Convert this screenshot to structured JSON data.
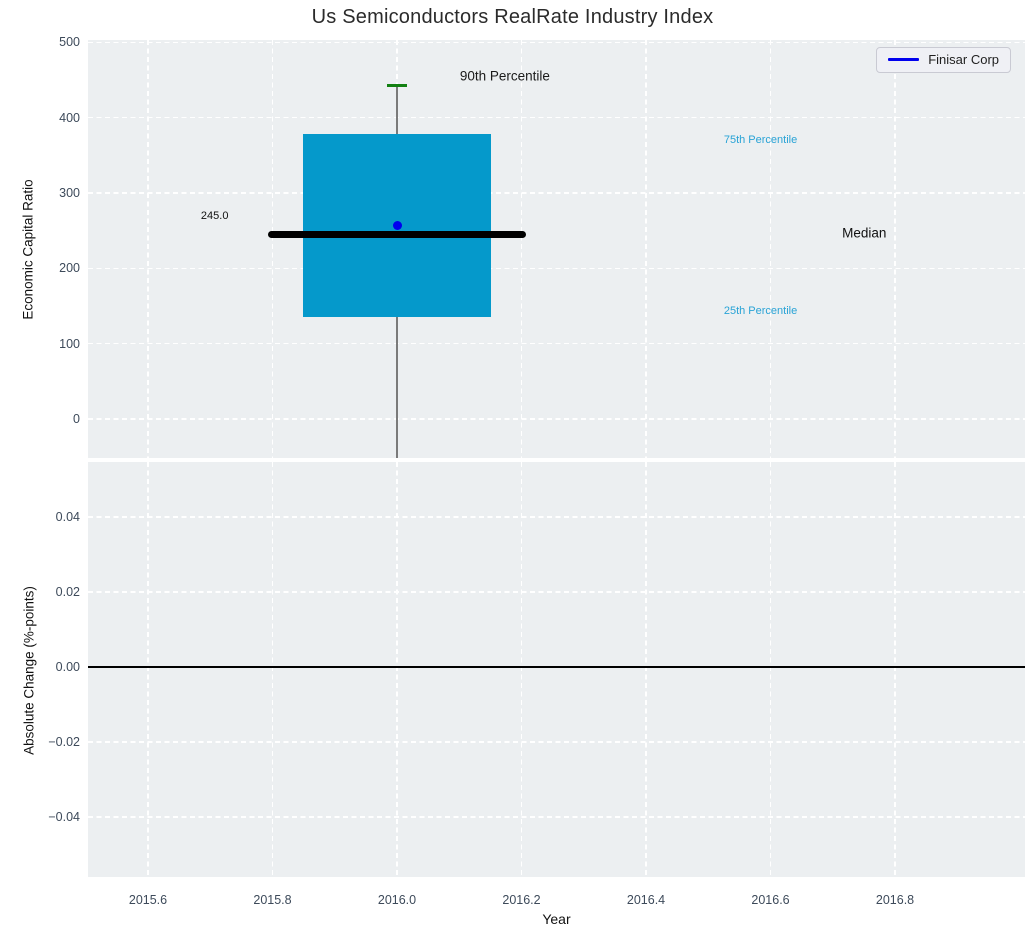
{
  "title": "Us Semiconductors RealRate Industry Index",
  "legend": {
    "label": "Finisar Corp",
    "line_color": "#0000ee"
  },
  "colors": {
    "panel_bg": "#eceff1",
    "grid": "#ffffff",
    "box_fill": "#0599cb",
    "median_line": "#000000",
    "whisker": "#7a7a7a",
    "p90_cap": "#128012",
    "company_point": "#0000ee",
    "percentile_label": "#29a3d6",
    "tick_label": "#3d4a5a",
    "zero_line": "#000000"
  },
  "chart_data": [
    {
      "type": "box",
      "panel": "top",
      "title": "Us Semiconductors RealRate Industry Index",
      "ylabel": "Economic Capital Ratio",
      "xlim": [
        2015.5036,
        2017.0088
      ],
      "ylim": [
        -52,
        503.3
      ],
      "grid": "white-dashed",
      "yticks": [
        {
          "v": 0,
          "label": "0"
        },
        {
          "v": 100,
          "label": "100"
        },
        {
          "v": 200,
          "label": "200"
        },
        {
          "v": 300,
          "label": "300"
        },
        {
          "v": 400,
          "label": "400"
        },
        {
          "v": 500,
          "label": "500"
        }
      ],
      "xticks": [
        {
          "v": 2015.6
        },
        {
          "v": 2015.8
        },
        {
          "v": 2016.0
        },
        {
          "v": 2016.2
        },
        {
          "v": 2016.4
        },
        {
          "v": 2016.6
        },
        {
          "v": 2016.8
        }
      ],
      "box": {
        "x": 2016.0,
        "q1": 135,
        "median": 245.0,
        "q3": 378,
        "p90": 443,
        "company_point": 257,
        "whisker_low": -52,
        "box_halfwidth": 0.151,
        "median_halfwidth": 0.207,
        "cap_halfwidth": 0.0165
      },
      "legend_entries": [
        {
          "label": "Finisar Corp",
          "color": "#0000ee"
        }
      ],
      "legend_position": "upper-right",
      "annotations": [
        {
          "text": "90th Percentile",
          "x": 2016.101,
          "y": 455,
          "color": "#1a1a1a",
          "size": 13.5
        },
        {
          "text": "75th Percentile",
          "x": 2016.525,
          "y": 370,
          "color": "#29a3d6",
          "size": 11
        },
        {
          "text": "Median",
          "x": 2016.715,
          "y": 247,
          "color": "#111111",
          "size": 13.5
        },
        {
          "text": "25th Percentile",
          "x": 2016.525,
          "y": 143,
          "color": "#29a3d6",
          "size": 11
        },
        {
          "text": "245.0",
          "x": 2015.685,
          "y": 270,
          "color": "#111111",
          "size": 11
        }
      ]
    },
    {
      "type": "line",
      "panel": "bottom",
      "ylabel": "Absolute Change (%-points)",
      "xlabel": "Year",
      "xlim": [
        2015.5036,
        2017.0088
      ],
      "ylim": [
        -0.056,
        0.0547
      ],
      "grid": "white-dashed",
      "zero_line": 0.0,
      "yticks": [
        {
          "v": 0.04,
          "label": "0.04"
        },
        {
          "v": 0.02,
          "label": "0.02"
        },
        {
          "v": 0.0,
          "label": "0.00"
        },
        {
          "v": -0.02,
          "label": "−0.02"
        },
        {
          "v": -0.04,
          "label": "−0.04"
        }
      ],
      "xticks": [
        {
          "v": 2015.6,
          "label": "2015.6"
        },
        {
          "v": 2015.8,
          "label": "2015.8"
        },
        {
          "v": 2016.0,
          "label": "2016.0"
        },
        {
          "v": 2016.2,
          "label": "2016.2"
        },
        {
          "v": 2016.4,
          "label": "2016.4"
        },
        {
          "v": 2016.6,
          "label": "2016.6"
        },
        {
          "v": 2016.8,
          "label": "2016.8"
        }
      ]
    }
  ]
}
